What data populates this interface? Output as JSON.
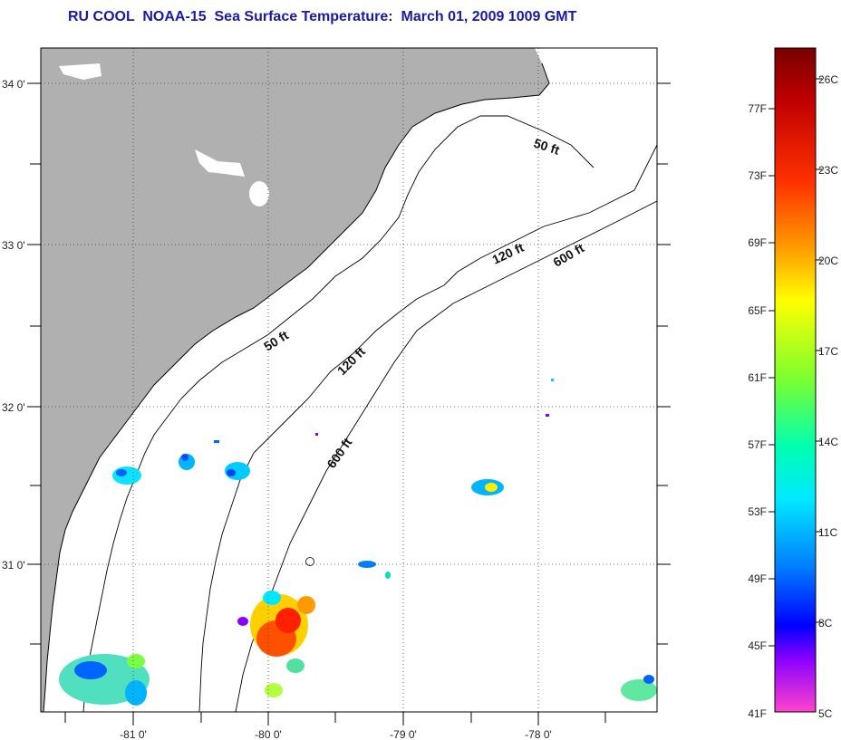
{
  "title": "RU COOL  NOAA-15  Sea Surface Temperature:  March 01, 2009 1009 GMT",
  "map": {
    "lat_labels": [
      "34 0'",
      "33 0'",
      "32 0'",
      "31 0'"
    ],
    "lon_labels": [
      "-81 0'",
      "-80 0'",
      "-79 0'",
      "-78 0'"
    ],
    "contours": [
      {
        "depth": "50 ft",
        "labels": [
          "50 ft",
          "50 ft"
        ]
      },
      {
        "depth": "120 ft",
        "labels": [
          "120 ft",
          "120 ft"
        ]
      },
      {
        "depth": "600 ft",
        "labels": [
          "600 ft",
          "600 ft"
        ]
      }
    ],
    "land_color": "#b0b0b0",
    "water_color": "#ffffff"
  },
  "colorbar": {
    "fahrenheit_labels": [
      "77F",
      "73F",
      "69F",
      "65F",
      "61F",
      "57F",
      "53F",
      "49F",
      "45F",
      "41F"
    ],
    "celsius_labels": [
      "26C",
      "23C",
      "20C",
      "17C",
      "14C",
      "11C",
      "8C",
      "5C"
    ],
    "colors": [
      "#7a0000",
      "#e00000",
      "#ff7a00",
      "#ffff00",
      "#7aff00",
      "#00ff9a",
      "#00e8ff",
      "#0064ff",
      "#0000ff",
      "#8800ff",
      "#ff44cc"
    ]
  }
}
